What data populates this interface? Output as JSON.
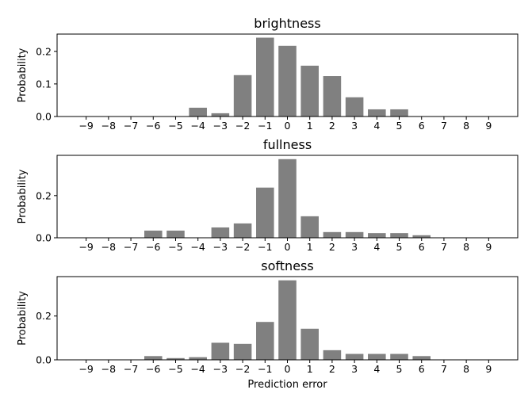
{
  "chart_data": [
    {
      "type": "bar",
      "title": "brightness",
      "xlabel": "",
      "ylabel": "Probability",
      "categories": [
        -9,
        -8,
        -7,
        -6,
        -5,
        -4,
        -3,
        -2,
        -1,
        0,
        1,
        2,
        3,
        4,
        5,
        6,
        7,
        8,
        9
      ],
      "values": [
        0,
        0,
        0,
        0,
        0,
        0.027,
        0.01,
        0.127,
        0.242,
        0.217,
        0.156,
        0.124,
        0.059,
        0.022,
        0.022,
        0,
        0,
        0,
        0
      ],
      "ylim": [
        0,
        0.253
      ],
      "yticks": [
        0.0,
        0.1,
        0.2
      ],
      "bar_color": "#808080"
    },
    {
      "type": "bar",
      "title": "fullness",
      "xlabel": "",
      "ylabel": "Probability",
      "categories": [
        -9,
        -8,
        -7,
        -6,
        -5,
        -4,
        -3,
        -2,
        -1,
        0,
        1,
        2,
        3,
        4,
        5,
        6,
        7,
        8,
        9
      ],
      "values": [
        0,
        0,
        0,
        0.034,
        0.034,
        0,
        0.049,
        0.068,
        0.238,
        0.373,
        0.102,
        0.027,
        0.027,
        0.022,
        0.022,
        0.012,
        0,
        0,
        0
      ],
      "ylim": [
        0,
        0.391
      ],
      "yticks": [
        0.0,
        0.2
      ],
      "bar_color": "#808080"
    },
    {
      "type": "bar",
      "title": "softness",
      "xlabel": "Prediction error",
      "ylabel": "Probability",
      "categories": [
        -9,
        -8,
        -7,
        -6,
        -5,
        -4,
        -3,
        -2,
        -1,
        0,
        1,
        2,
        3,
        4,
        5,
        6,
        7,
        8,
        9
      ],
      "values": [
        0,
        0,
        0,
        0.017,
        0.008,
        0.012,
        0.078,
        0.073,
        0.173,
        0.363,
        0.142,
        0.044,
        0.027,
        0.027,
        0.027,
        0.017,
        0,
        0,
        0
      ],
      "ylim": [
        0,
        0.38
      ],
      "yticks": [
        0.0,
        0.2
      ],
      "bar_color": "#808080"
    }
  ]
}
